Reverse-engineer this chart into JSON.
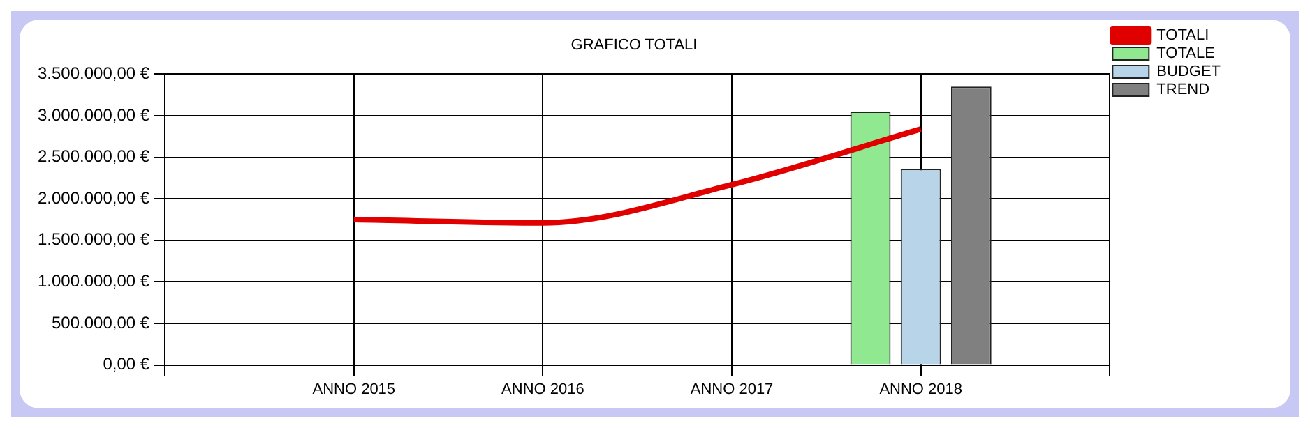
{
  "chart_data": {
    "type": "bar",
    "title": "GRAFICO TOTALI",
    "categories": [
      null,
      "ANNO 2015",
      "ANNO 2016",
      "ANNO 2017",
      "ANNO 2018",
      null
    ],
    "series": [
      {
        "name": "TOTALE",
        "color": "#90e890",
        "values": [
          null,
          null,
          null,
          null,
          3050000,
          null
        ]
      },
      {
        "name": "BUDGET",
        "color": "#b8d4e8",
        "values": [
          null,
          null,
          null,
          null,
          2360000,
          null
        ]
      },
      {
        "name": "TREND",
        "color": "#808080",
        "values": [
          null,
          null,
          null,
          null,
          3350000,
          null
        ]
      },
      {
        "name": "TOTALI",
        "type": "line",
        "color": "#e00000",
        "values": [
          null,
          1750000,
          1710000,
          2170000,
          2840000,
          null
        ]
      }
    ],
    "ylim": [
      0,
      3500000
    ],
    "yticks": [
      {
        "value": 0,
        "label": "0,00 €"
      },
      {
        "value": 500000,
        "label": "500.000,00 €"
      },
      {
        "value": 1000000,
        "label": "1.000.000,00 €"
      },
      {
        "value": 1500000,
        "label": "1.500.000,00 €"
      },
      {
        "value": 2000000,
        "label": "2.000.000,00 €"
      },
      {
        "value": 2500000,
        "label": "2.500.000,00 €"
      },
      {
        "value": 3000000,
        "label": "3.000.000,00 €"
      },
      {
        "value": 3500000,
        "label": "3.500.000,00 €"
      }
    ],
    "grid": true,
    "legend": "top right"
  }
}
